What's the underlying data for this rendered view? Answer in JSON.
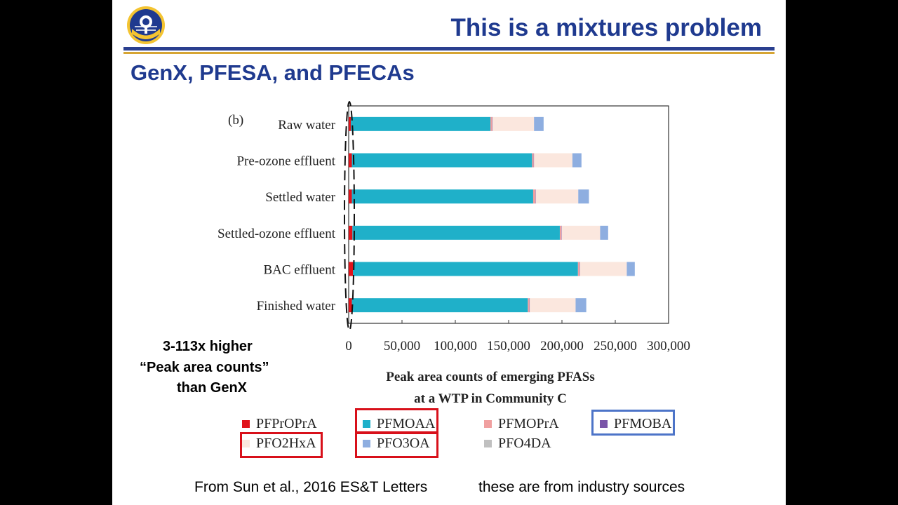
{
  "slide": {
    "title": "This is a mixtures problem",
    "subtitle": "GenX, PFESA, and PFECAs",
    "callout": [
      "3-113x higher",
      "“Peak area counts”",
      "than GenX"
    ],
    "footer_citation": "From Sun et al., 2016 ES&T Letters",
    "footer_note": "these are from industry sources",
    "logo_icon": "organization-seal-icon"
  },
  "chart_data": {
    "type": "bar",
    "orientation": "horizontal",
    "stacked": true,
    "panel_label": "(b)",
    "xlabel_lines": [
      "Peak area counts of emerging PFASs",
      "at a WTP in Community C"
    ],
    "xlim": [
      0,
      300000
    ],
    "xticks": [
      0,
      50000,
      100000,
      150000,
      200000,
      250000,
      300000
    ],
    "xtick_labels": [
      "0",
      "50,000",
      "100,000",
      "150,000",
      "200,000",
      "250,000",
      "300,000"
    ],
    "categories": [
      "Raw water",
      "Pre-ozone effluent",
      "Settled water",
      "Settled-ozone effluent",
      "BAC effluent",
      "Finished water"
    ],
    "series": [
      {
        "name": "PFPrOPrA",
        "color": "#e0131b",
        "values": [
          2000,
          3000,
          3000,
          3500,
          4000,
          3000
        ]
      },
      {
        "name": "PFMOAA",
        "color": "#1fb0c9",
        "values": [
          131000,
          169000,
          170000,
          194500,
          211000,
          165000
        ]
      },
      {
        "name": "PFMOPrA",
        "color": "#f0a0a0",
        "values": [
          1500,
          1500,
          2000,
          1500,
          1500,
          1500
        ]
      },
      {
        "name": "PFMOBA",
        "color": "#7a55a8",
        "values": [
          300,
          300,
          300,
          300,
          300,
          300
        ]
      },
      {
        "name": "PFO2HxA",
        "color": "#fbe7de",
        "values": [
          39000,
          36000,
          40000,
          36000,
          44000,
          43000
        ]
      },
      {
        "name": "PFO3OA",
        "color": "#8eaee0",
        "values": [
          9000,
          8500,
          10000,
          7500,
          7500,
          10000
        ]
      },
      {
        "name": "PFO4DA",
        "color": "#c0c0c0",
        "values": [
          0,
          0,
          0,
          0,
          0,
          0
        ]
      }
    ],
    "legend_position": "bottom",
    "highlighted_legend_red": [
      "PFMOAA",
      "PFO2HxA",
      "PFO3OA"
    ],
    "highlighted_legend_blue": [
      "PFMOBA"
    ],
    "annotation": "dashed ellipse around the near-zero PFPrOPrA (GenX) bars"
  }
}
